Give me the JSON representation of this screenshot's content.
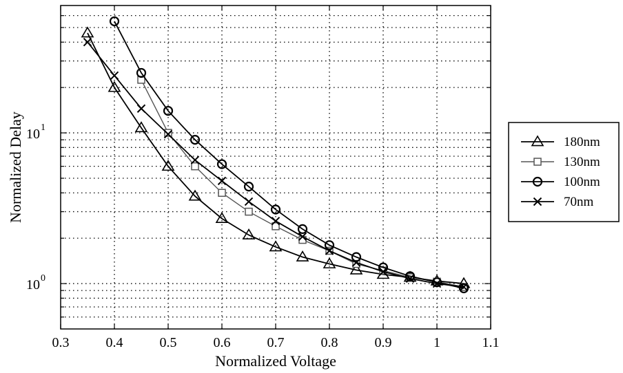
{
  "chart_data": {
    "type": "line",
    "title": "",
    "xlabel": "Normalized Voltage",
    "ylabel": "Normalized Delay",
    "xlim": [
      0.3,
      1.1
    ],
    "ylim": [
      0.5,
      70
    ],
    "yscale": "log",
    "grid": true,
    "legend_position": "right",
    "x_ticks": [
      0.3,
      0.4,
      0.5,
      0.6,
      0.7,
      0.8,
      0.9,
      1,
      1.1
    ],
    "x_tick_labels": [
      "0.3",
      "0.4",
      "0.5",
      "0.6",
      "0.7",
      "0.8",
      "0.9",
      "1",
      "1.1"
    ],
    "y_ticks": [
      1,
      10
    ],
    "y_tick_labels": [
      {
        "base": "10",
        "exp": "0"
      },
      {
        "base": "10",
        "exp": "1"
      }
    ],
    "series": [
      {
        "name": "180nm",
        "legend_label": "180nm",
        "marker": "triangle",
        "color": "#000000",
        "x": [
          0.35,
          0.4,
          0.45,
          0.5,
          0.55,
          0.6,
          0.65,
          0.7,
          0.75,
          0.8,
          0.85,
          0.9,
          0.95,
          1.0,
          1.05
        ],
        "y": [
          46,
          20,
          10.8,
          6.0,
          3.8,
          2.7,
          2.1,
          1.75,
          1.5,
          1.35,
          1.23,
          1.15,
          1.1,
          1.04,
          1.0
        ]
      },
      {
        "name": "130nm",
        "legend_label": "130nm",
        "marker": "square",
        "color": "#555555",
        "x": [
          0.45,
          0.5,
          0.55,
          0.6,
          0.65,
          0.7,
          0.75,
          0.8,
          0.85,
          0.9,
          0.95,
          1.0,
          1.05
        ],
        "y": [
          22.5,
          10.0,
          6.0,
          4.0,
          3.0,
          2.4,
          1.95,
          1.65,
          1.35,
          1.22,
          1.1,
          1.03,
          0.95
        ]
      },
      {
        "name": "100nm",
        "legend_label": "100nm",
        "marker": "circle",
        "color": "#000000",
        "x": [
          0.4,
          0.45,
          0.5,
          0.55,
          0.6,
          0.65,
          0.7,
          0.75,
          0.8,
          0.85,
          0.9,
          0.95,
          1.0,
          1.05
        ],
        "y": [
          55,
          25,
          14,
          9.0,
          6.2,
          4.4,
          3.1,
          2.3,
          1.8,
          1.5,
          1.28,
          1.12,
          1.02,
          0.93
        ]
      },
      {
        "name": "70nm",
        "legend_label": " 70nm",
        "marker": "x",
        "color": "#000000",
        "x": [
          0.35,
          0.4,
          0.45,
          0.5,
          0.55,
          0.6,
          0.65,
          0.7,
          0.75,
          0.8,
          0.85,
          0.9,
          0.95,
          1.0,
          1.05
        ],
        "y": [
          40,
          24,
          14.5,
          9.8,
          6.6,
          4.8,
          3.5,
          2.6,
          2.05,
          1.65,
          1.38,
          1.2,
          1.08,
          1.0,
          0.95
        ]
      }
    ]
  }
}
